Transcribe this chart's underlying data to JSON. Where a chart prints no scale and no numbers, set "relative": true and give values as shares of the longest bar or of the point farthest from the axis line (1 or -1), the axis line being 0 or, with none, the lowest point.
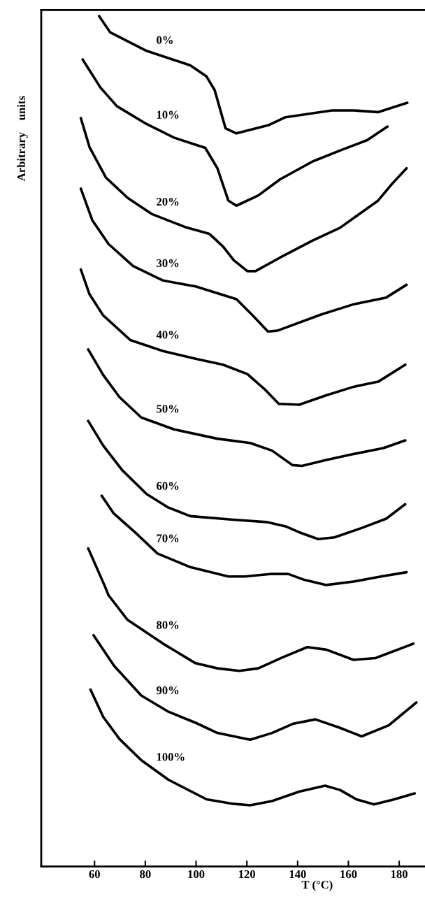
{
  "chart_data": {
    "type": "line",
    "relative": true,
    "xlabel": "T (°C)",
    "ylabel": "Arbitrary    units",
    "xlim": [
      39,
      190
    ],
    "xticks": [
      60,
      80,
      100,
      120,
      140,
      160,
      180
    ],
    "tick_labels": "x",
    "grid": false,
    "legend": false,
    "marker": "none",
    "line_style": "solid",
    "series": [
      {
        "name": "0%",
        "color": "#000000",
        "x": [
          61.8,
          66.1,
          80.5,
          97.7,
          104.1,
          107.3,
          111.6,
          115.9,
          128.8,
          135.2,
          153.5,
          162.0,
          171.7,
          177.0,
          183.2
        ],
        "values": [
          1.0,
          0.981,
          0.959,
          0.942,
          0.929,
          0.913,
          0.868,
          0.862,
          0.872,
          0.881,
          0.889,
          0.889,
          0.887,
          0.892,
          0.898
        ]
      },
      {
        "name": "10%",
        "color": "#000000",
        "x": [
          55.3,
          62.3,
          68.8,
          80.5,
          91.3,
          103.6,
          108.4,
          112.7,
          115.9,
          124.5,
          133.1,
          145.9,
          157.7,
          167.4,
          175.4
        ],
        "values": [
          0.949,
          0.916,
          0.894,
          0.873,
          0.857,
          0.845,
          0.821,
          0.783,
          0.777,
          0.789,
          0.808,
          0.829,
          0.843,
          0.854,
          0.87
        ]
      },
      {
        "name": "20%",
        "color": "#000000",
        "x": [
          54.6,
          58.0,
          64.5,
          73.1,
          82.7,
          95.6,
          105.2,
          110.6,
          114.8,
          120.2,
          123.4,
          133.1,
          145.9,
          156.7,
          171.7,
          177.0,
          182.9
        ],
        "values": [
          0.88,
          0.846,
          0.81,
          0.786,
          0.767,
          0.752,
          0.744,
          0.729,
          0.713,
          0.7,
          0.7,
          0.716,
          0.736,
          0.751,
          0.783,
          0.802,
          0.821
        ]
      },
      {
        "name": "30%",
        "color": "#000000",
        "x": [
          54.6,
          59.1,
          65.5,
          75.2,
          87.0,
          99.8,
          108.4,
          115.9,
          122.3,
          128.3,
          132.0,
          149.2,
          162.0,
          174.9,
          182.9
        ],
        "values": [
          0.797,
          0.76,
          0.732,
          0.706,
          0.689,
          0.682,
          0.674,
          0.667,
          0.648,
          0.629,
          0.63,
          0.649,
          0.661,
          0.669,
          0.684
        ]
      },
      {
        "name": "40%",
        "color": "#000000",
        "x": [
          54.6,
          58.0,
          63.4,
          74.1,
          87.0,
          99.8,
          110.6,
          120.2,
          126.7,
          132.6,
          140.6,
          151.3,
          162.0,
          171.7,
          182.4
        ],
        "values": [
          0.702,
          0.673,
          0.648,
          0.619,
          0.606,
          0.597,
          0.59,
          0.579,
          0.562,
          0.544,
          0.543,
          0.554,
          0.564,
          0.57,
          0.59
        ]
      },
      {
        "name": "50%",
        "color": "#000000",
        "x": [
          57.5,
          63.4,
          69.8,
          78.4,
          91.3,
          108.4,
          121.3,
          129.9,
          137.9,
          141.7,
          151.3,
          162.0,
          173.8,
          182.4
        ],
        "values": [
          0.608,
          0.578,
          0.552,
          0.528,
          0.514,
          0.503,
          0.498,
          0.489,
          0.472,
          0.471,
          0.478,
          0.485,
          0.492,
          0.501
        ]
      },
      {
        "name": "60%",
        "color": "#000000",
        "x": [
          57.5,
          63.4,
          70.9,
          80.5,
          89.1,
          97.7,
          113.8,
          127.7,
          135.2,
          140.6,
          148.1,
          154.5,
          165.2,
          174.9,
          182.4
        ],
        "values": [
          0.524,
          0.495,
          0.466,
          0.438,
          0.422,
          0.412,
          0.408,
          0.405,
          0.4,
          0.393,
          0.385,
          0.387,
          0.398,
          0.409,
          0.426
        ]
      },
      {
        "name": "70%",
        "color": "#000000",
        "x": [
          62.8,
          67.6,
          76.3,
          84.8,
          97.7,
          112.7,
          119.1,
          129.9,
          136.3,
          142.7,
          151.3,
          162.0,
          172.8,
          182.9
        ],
        "values": [
          0.436,
          0.415,
          0.392,
          0.368,
          0.352,
          0.341,
          0.341,
          0.344,
          0.344,
          0.337,
          0.331,
          0.335,
          0.341,
          0.346
        ]
      },
      {
        "name": "80%",
        "color": "#000000",
        "x": [
          57.5,
          64.0,
          65.5,
          73.0,
          87.0,
          99.8,
          108.4,
          117.0,
          124.5,
          134.1,
          143.8,
          151.3,
          162.0,
          170.6,
          185.6
        ],
        "values": [
          0.374,
          0.33,
          0.319,
          0.29,
          0.262,
          0.239,
          0.233,
          0.23,
          0.233,
          0.246,
          0.258,
          0.255,
          0.243,
          0.245,
          0.262
        ]
      },
      {
        "name": "90%",
        "color": "#000000",
        "x": [
          59.6,
          67.7,
          78.4,
          89.1,
          99.8,
          108.4,
          121.3,
          129.9,
          138.4,
          147.0,
          156.7,
          165.2,
          175.9,
          186.8
        ],
        "values": [
          0.272,
          0.236,
          0.201,
          0.182,
          0.169,
          0.157,
          0.149,
          0.157,
          0.168,
          0.173,
          0.163,
          0.153,
          0.166,
          0.193
        ]
      },
      {
        "name": "100%",
        "color": "#000000",
        "x": [
          58.4,
          63.4,
          69.8,
          78.4,
          89.1,
          104.1,
          113.8,
          121.3,
          129.9,
          140.6,
          150.8,
          156.7,
          163.1,
          170.1,
          178.1,
          186.1
        ],
        "values": [
          0.208,
          0.176,
          0.15,
          0.125,
          0.102,
          0.079,
          0.074,
          0.072,
          0.077,
          0.088,
          0.095,
          0.09,
          0.079,
          0.073,
          0.079,
          0.086
        ]
      }
    ]
  }
}
